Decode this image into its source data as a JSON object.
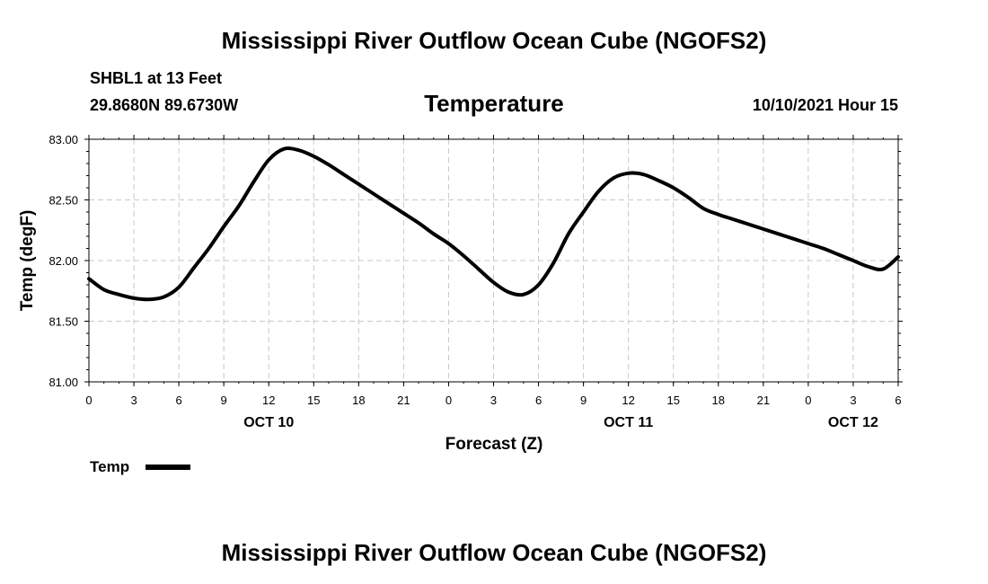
{
  "page": {
    "top_title": "Mississippi River Outflow Ocean Cube (NGOFS2)",
    "bottom_title": "Mississippi River Outflow Ocean Cube (NGOFS2)",
    "station": "SHBL1 at 13 Feet",
    "coords": "29.8680N  89.6730W",
    "variable": "Temperature",
    "timestamp": "10/10/2021 Hour 15"
  },
  "chart_data": {
    "type": "line",
    "title": "Temperature",
    "xlabel": "Forecast (Z)",
    "ylabel": "Temp (degF)",
    "ylim": [
      81.0,
      83.0
    ],
    "xlim": [
      0,
      54
    ],
    "grid": true,
    "y_ticks": [
      81.0,
      81.5,
      82.0,
      82.5,
      83.0
    ],
    "y_tick_labels": [
      "81.00",
      "81.50",
      "82.00",
      "82.50",
      "83.00"
    ],
    "x_ticks": [
      0,
      3,
      6,
      9,
      12,
      15,
      18,
      21,
      24,
      27,
      30,
      33,
      36,
      39,
      42,
      45,
      48,
      51,
      54
    ],
    "x_tick_labels": [
      "0",
      "3",
      "6",
      "9",
      "12",
      "15",
      "18",
      "21",
      "0",
      "3",
      "6",
      "9",
      "12",
      "15",
      "18",
      "21",
      "0",
      "3",
      "6"
    ],
    "date_labels": [
      {
        "label": "OCT 10",
        "x": 12
      },
      {
        "label": "OCT 11",
        "x": 36
      },
      {
        "label": "OCT 12",
        "x": 51
      }
    ],
    "legend": {
      "label": "Temp",
      "placement": "bottom-left"
    },
    "series": [
      {
        "name": "Temp",
        "color": "#000000",
        "x": [
          0,
          1,
          2,
          3,
          4,
          5,
          6,
          7,
          8,
          9,
          10,
          11,
          12,
          13,
          14,
          15,
          16,
          17,
          18,
          19,
          20,
          21,
          22,
          23,
          24,
          25,
          26,
          27,
          28,
          29,
          30,
          31,
          32,
          33,
          34,
          35,
          36,
          37,
          38,
          39,
          40,
          41,
          42,
          43,
          44,
          45,
          46,
          47,
          48,
          49,
          50,
          51,
          52,
          53,
          54
        ],
        "values": [
          81.85,
          81.76,
          81.72,
          81.69,
          81.68,
          81.7,
          81.78,
          81.94,
          82.1,
          82.28,
          82.45,
          82.65,
          82.83,
          82.92,
          82.91,
          82.86,
          82.79,
          82.71,
          82.63,
          82.55,
          82.47,
          82.39,
          82.31,
          82.22,
          82.14,
          82.04,
          81.93,
          81.82,
          81.74,
          81.72,
          81.8,
          81.98,
          82.22,
          82.4,
          82.57,
          82.68,
          82.72,
          82.71,
          82.66,
          82.6,
          82.52,
          82.43,
          82.38,
          82.34,
          82.3,
          82.26,
          82.22,
          82.18,
          82.14,
          82.1,
          82.05,
          82.0,
          81.95,
          81.93,
          82.03
        ]
      }
    ]
  }
}
